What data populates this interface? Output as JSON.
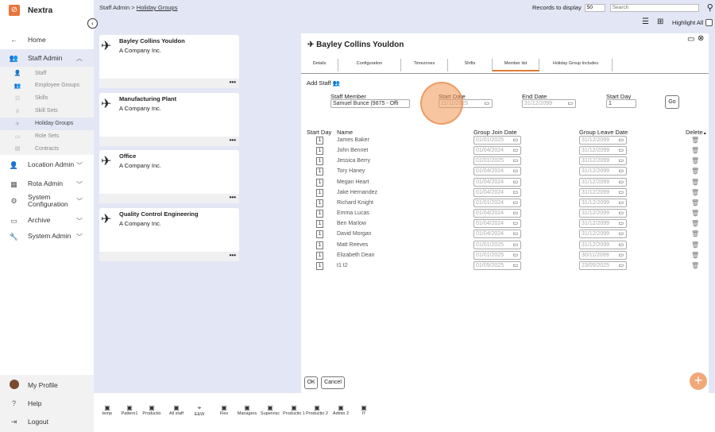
{
  "app": {
    "name": "Nextra",
    "accent": "#e8743b"
  },
  "sidebar": {
    "home": "Home",
    "staff_admin": "Staff Admin",
    "sub_items": [
      "Staff",
      "Employee Groups",
      "Skills",
      "Skill Sets",
      "Holiday Groups",
      "Role Sets",
      "Contracts"
    ],
    "active_sub": "Holiday Groups",
    "sections": [
      "Location Admin",
      "Rota Admin",
      "System Configuration",
      "Archive",
      "System Admin"
    ],
    "bottom": [
      "My Profile",
      "Help",
      "Logout"
    ]
  },
  "breadcrumb": {
    "parent": "Staff Admin",
    "sep": " > ",
    "current": "Holiday Groups"
  },
  "toolbar": {
    "records_label": "Records to display",
    "records_value": "50",
    "search_placeholder": "Search",
    "highlight_all": "Highlight All"
  },
  "cards": [
    {
      "title": "Bayley Collins Youldon",
      "company": "A Company Inc."
    },
    {
      "title": "Manufacturing Plant",
      "company": "A Company Inc."
    },
    {
      "title": "Office",
      "company": "A Company Inc."
    },
    {
      "title": "Quality Control Engineering",
      "company": "A Company Inc."
    }
  ],
  "card_more": "•••",
  "panel": {
    "title": "Bayley Collins Youldon",
    "tabs": [
      "Details",
      "Configuration",
      "Timezones",
      "Shifts",
      "Member list",
      "Holiday Group Includes"
    ],
    "active_tab": "Member list",
    "add_staff": "Add Staff",
    "form": {
      "staff_label": "Staff Member",
      "staff_value": "Samuel Bunce (9875 - Offi",
      "start_label": "Start Date",
      "start_value": "11/11/2025",
      "end_label": "End Date",
      "end_value": "31/12/2099",
      "day_label": "Start Day",
      "day_value": "1",
      "go": "Go"
    },
    "columns": [
      "Start Day",
      "Name",
      "Group Join Date",
      "Group Leave Date",
      "Delete"
    ],
    "rows": [
      {
        "day": "1",
        "name": "James Baker",
        "join": "01/01/2025",
        "leave": "31/12/2099"
      },
      {
        "day": "1",
        "name": "John Bennet",
        "join": "01/04/2024",
        "leave": "31/12/2099"
      },
      {
        "day": "1",
        "name": "Jessica Berry",
        "join": "01/01/2025",
        "leave": "31/12/2099"
      },
      {
        "day": "1",
        "name": "Tory Haney",
        "join": "01/04/2024",
        "leave": "31/12/2099"
      },
      {
        "day": "1",
        "name": "Megan Heart",
        "join": "01/04/2024",
        "leave": "31/12/2099"
      },
      {
        "day": "1",
        "name": "Jake Hernandez",
        "join": "01/04/2024",
        "leave": "31/12/2099"
      },
      {
        "day": "1",
        "name": "Richard Knight",
        "join": "01/01/2024",
        "leave": "31/12/2099"
      },
      {
        "day": "1",
        "name": "Emma Lucas",
        "join": "01/04/2024",
        "leave": "31/12/2099"
      },
      {
        "day": "1",
        "name": "Ben Marlow",
        "join": "01/04/2024",
        "leave": "31/12/2099"
      },
      {
        "day": "1",
        "name": "David Morgan",
        "join": "01/04/2024",
        "leave": "31/12/2099"
      },
      {
        "day": "1",
        "name": "Matt Reeves",
        "join": "01/01/2025",
        "leave": "31/12/2099"
      },
      {
        "day": "1",
        "name": "Elizabeth Dean",
        "join": "01/01/2025",
        "leave": "30/11/2099"
      },
      {
        "day": "1",
        "name": "t1 t2",
        "join": "01/05/2025",
        "leave": "23/05/2025"
      }
    ],
    "ok": "OK",
    "cancel": "Cancel"
  },
  "bottom_groups": [
    "temp",
    "Pattern1",
    "Productio",
    "All staff",
    "E&W",
    "Flex",
    "Managers",
    "Supervisc",
    "Productio 1",
    "Productio 2",
    "Admin 2",
    "IT"
  ]
}
